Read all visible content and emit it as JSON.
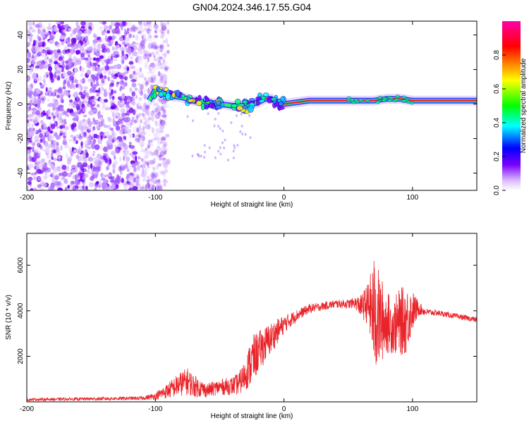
{
  "title": "GN04.2024.346.17.55.G04",
  "chart_data": [
    {
      "type": "heatmap",
      "xlabel": "Height of straight line (km)",
      "ylabel": "Frequency (Hz)",
      "xlim": [
        -200,
        150
      ],
      "ylim": [
        -50,
        48
      ],
      "xticks": [
        -200,
        -100,
        0,
        100
      ],
      "yticks": [
        -40,
        -20,
        0,
        20,
        40
      ],
      "colorbar": {
        "label": "Normalized spectral amplitude",
        "range": [
          0,
          1
        ],
        "ticks": [
          "0.0",
          "0.2",
          "0.4",
          "0.6",
          "0.8"
        ],
        "colors": [
          "#ffffff",
          "#7b00ff",
          "#0000ff",
          "#00ffff",
          "#00ff00",
          "#ffff00",
          "#ff0000",
          "#ff00aa"
        ]
      },
      "ridge": {
        "x": [
          -105,
          -100,
          -90,
          -80,
          -70,
          -60,
          -50,
          -40,
          -30,
          -20,
          -15,
          -10,
          -5,
          0,
          10,
          20,
          40,
          60,
          70,
          80,
          90,
          100,
          150
        ],
        "freq": [
          2,
          8,
          5,
          4,
          2,
          1,
          0,
          -1,
          -1,
          1,
          3,
          3,
          1,
          0,
          1,
          2,
          2,
          2,
          2,
          3,
          3,
          2,
          2
        ]
      },
      "noise_region_xlim": [
        -200,
        -98
      ]
    },
    {
      "type": "line",
      "xlabel": "Height of straight line (km)",
      "ylabel": "SNR (10 * v/v)",
      "xlim": [
        -200,
        150
      ],
      "ylim": [
        0,
        7400
      ],
      "xticks": [
        -200,
        -100,
        0,
        100
      ],
      "yticks": [
        2000,
        4000,
        6000
      ],
      "color": "#e8242a",
      "envelope": {
        "x": [
          -200,
          -150,
          -110,
          -100,
          -90,
          -80,
          -75,
          -70,
          -60,
          -50,
          -40,
          -35,
          -30,
          -25,
          -20,
          -10,
          0,
          10,
          20,
          30,
          40,
          50,
          55,
          60,
          65,
          68,
          70,
          72,
          75,
          80,
          85,
          90,
          95,
          100,
          105,
          110,
          120,
          130,
          140,
          150
        ],
        "mean": [
          100,
          130,
          160,
          250,
          500,
          800,
          900,
          700,
          500,
          650,
          700,
          800,
          1200,
          1800,
          2200,
          2800,
          3400,
          3800,
          4100,
          4200,
          4300,
          4300,
          4350,
          4200,
          4300,
          4100,
          3800,
          3700,
          3600,
          3500,
          3300,
          3500,
          3600,
          4000,
          4100,
          3950,
          3900,
          3800,
          3700,
          3600
        ],
        "amp": [
          60,
          70,
          80,
          150,
          350,
          550,
          600,
          500,
          300,
          350,
          400,
          500,
          700,
          1100,
          900,
          700,
          400,
          250,
          200,
          180,
          180,
          200,
          250,
          500,
          900,
          1700,
          2600,
          2400,
          2000,
          1400,
          1200,
          1500,
          1500,
          900,
          300,
          150,
          120,
          120,
          120,
          120
        ]
      }
    }
  ]
}
